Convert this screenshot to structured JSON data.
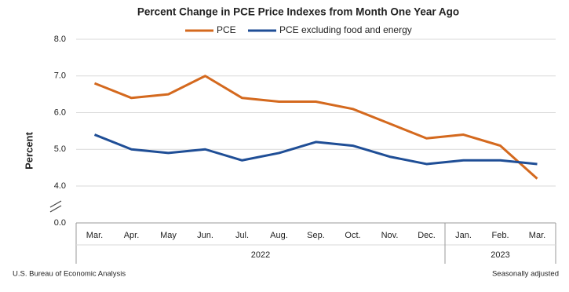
{
  "chart_data": {
    "type": "line",
    "title": "Percent Change in PCE Price Indexes from Month One Year Ago",
    "y_label": "Percent",
    "categories": [
      "Mar.",
      "Apr.",
      "May",
      "Jun.",
      "Jul.",
      "Aug.",
      "Sep.",
      "Oct.",
      "Nov.",
      "Dec.",
      "Jan.",
      "Feb.",
      "Mar."
    ],
    "x_groups": [
      {
        "label": "2022",
        "count": 10
      },
      {
        "label": "2023",
        "count": 3
      }
    ],
    "series": [
      {
        "name": "PCE",
        "color": "#d4691e",
        "values": [
          6.8,
          6.4,
          6.5,
          7.0,
          6.4,
          6.3,
          6.3,
          6.1,
          5.7,
          5.3,
          5.4,
          5.1,
          4.2
        ]
      },
      {
        "name": "PCE excluding food and energy",
        "color": "#1f4e96",
        "values": [
          5.4,
          5.0,
          4.9,
          5.0,
          4.7,
          4.9,
          5.2,
          5.1,
          4.8,
          4.6,
          4.7,
          4.7,
          4.6
        ]
      }
    ],
    "ylim": [
      0,
      8
    ],
    "yticks": [
      {
        "value": 0,
        "label": "0.0"
      },
      {
        "value": 4,
        "label": "4.0"
      },
      {
        "value": 5,
        "label": "5.0"
      },
      {
        "value": 6,
        "label": "6.0"
      },
      {
        "value": 7,
        "label": "7.0"
      },
      {
        "value": 8,
        "label": "8.0"
      }
    ],
    "axis_break": true,
    "grid": true,
    "legend": "top",
    "source": "U.S. Bureau of Economic Analysis",
    "note": "Seasonally adjusted"
  }
}
